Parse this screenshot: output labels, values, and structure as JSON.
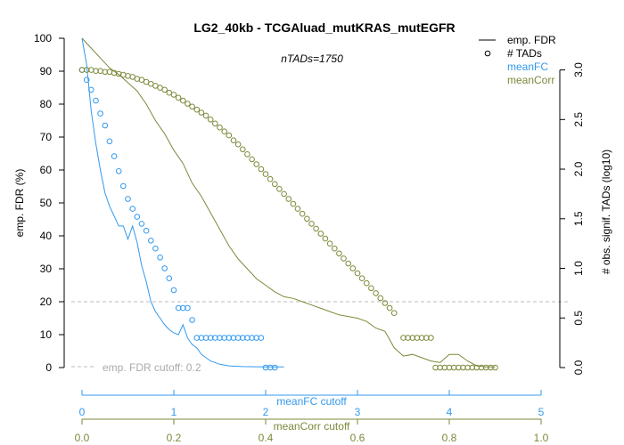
{
  "chart_data": {
    "type": "line",
    "title": "LG2_40kb - TCGAluad_mutKRAS_mutEGFR",
    "subtitle": "nTADs=1750",
    "left_axis": {
      "label": "emp. FDR (%)",
      "ticks": [
        0,
        10,
        20,
        30,
        40,
        50,
        60,
        70,
        80,
        90,
        100
      ],
      "range": [
        0,
        100
      ]
    },
    "right_axis": {
      "label": "# obs. signif. TADs (log10)",
      "ticks": [
        "0.0",
        "0.5",
        "1.0",
        "1.5",
        "2.0",
        "2.5",
        "3.0"
      ],
      "range": [
        0,
        3.05
      ]
    },
    "x_axis_meanFC": {
      "label": "meanFC cutoff",
      "ticks": [
        0,
        1,
        2,
        3,
        4,
        5
      ],
      "range": [
        0,
        5
      ]
    },
    "x_axis_meanCorr": {
      "label": "meanCorr cutoff",
      "ticks": [
        "0.0",
        "0.2",
        "0.4",
        "0.6",
        "0.8",
        "1.0"
      ],
      "range": [
        0,
        1
      ]
    },
    "fdr_cutoff": {
      "value": 20,
      "label": "emp. FDR cutoff: 0.2"
    },
    "legend": {
      "position": "top-right",
      "items": [
        {
          "label": "emp. FDR",
          "symbol": "line",
          "color": "#000000"
        },
        {
          "label": "# TADs",
          "symbol": "circle",
          "color": "#000000"
        },
        {
          "label": "meanFC",
          "symbol": "none",
          "color": "#3399ee"
        },
        {
          "label": "meanCorr",
          "symbol": "none",
          "color": "#7a8a3a"
        }
      ]
    },
    "series": [
      {
        "name": "meanFC",
        "color": "#3399ee",
        "x_axis": "meanFC",
        "fdr_line": [
          [
            0,
            100
          ],
          [
            0.05,
            92
          ],
          [
            0.1,
            78
          ],
          [
            0.15,
            68
          ],
          [
            0.2,
            60
          ],
          [
            0.25,
            53
          ],
          [
            0.3,
            49
          ],
          [
            0.35,
            46
          ],
          [
            0.4,
            43
          ],
          [
            0.45,
            43
          ],
          [
            0.5,
            39
          ],
          [
            0.55,
            43
          ],
          [
            0.6,
            38
          ],
          [
            0.65,
            31
          ],
          [
            0.7,
            26
          ],
          [
            0.75,
            20
          ],
          [
            0.8,
            17
          ],
          [
            0.85,
            15
          ],
          [
            0.9,
            13
          ],
          [
            0.95,
            11.5
          ],
          [
            1.0,
            10.5
          ],
          [
            1.05,
            10
          ],
          [
            1.1,
            13
          ],
          [
            1.15,
            9
          ],
          [
            1.2,
            7
          ],
          [
            1.25,
            6
          ],
          [
            1.3,
            4
          ],
          [
            1.35,
            3
          ],
          [
            1.4,
            2
          ],
          [
            1.5,
            1
          ],
          [
            1.6,
            0.5
          ],
          [
            1.75,
            0.3
          ],
          [
            2.0,
            0.2
          ],
          [
            2.2,
            0.2
          ]
        ],
        "tads_log10": [
          [
            0,
            3.0
          ],
          [
            0.05,
            2.9
          ],
          [
            0.1,
            2.8
          ],
          [
            0.15,
            2.69
          ],
          [
            0.2,
            2.56
          ],
          [
            0.25,
            2.44
          ],
          [
            0.3,
            2.28
          ],
          [
            0.35,
            2.13
          ],
          [
            0.4,
            1.98
          ],
          [
            0.45,
            1.83
          ],
          [
            0.5,
            1.7
          ],
          [
            0.55,
            1.6
          ],
          [
            0.6,
            1.52
          ],
          [
            0.65,
            1.45
          ],
          [
            0.7,
            1.38
          ],
          [
            0.75,
            1.28
          ],
          [
            0.8,
            1.2
          ],
          [
            0.85,
            1.11
          ],
          [
            0.9,
            1.0
          ],
          [
            0.95,
            0.9
          ],
          [
            1.0,
            0.78
          ],
          [
            1.05,
            0.6
          ],
          [
            1.1,
            0.6
          ],
          [
            1.15,
            0.6
          ],
          [
            1.2,
            0.48
          ],
          [
            1.25,
            0.3
          ],
          [
            1.3,
            0.3
          ],
          [
            1.35,
            0.3
          ],
          [
            1.4,
            0.3
          ],
          [
            1.45,
            0.3
          ],
          [
            1.5,
            0.3
          ],
          [
            1.55,
            0.3
          ],
          [
            1.6,
            0.3
          ],
          [
            1.65,
            0.3
          ],
          [
            1.7,
            0.3
          ],
          [
            1.75,
            0.3
          ],
          [
            1.8,
            0.3
          ],
          [
            1.85,
            0.3
          ],
          [
            1.9,
            0.3
          ],
          [
            1.95,
            0.3
          ],
          [
            2.0,
            0.0
          ],
          [
            2.05,
            0.0
          ],
          [
            2.1,
            0.0
          ]
        ]
      },
      {
        "name": "meanCorr",
        "color": "#7a8a3a",
        "x_axis": "meanCorr",
        "fdr_line": [
          [
            0,
            100
          ],
          [
            0.02,
            97
          ],
          [
            0.04,
            94
          ],
          [
            0.06,
            91
          ],
          [
            0.08,
            89
          ],
          [
            0.1,
            86.5
          ],
          [
            0.12,
            84
          ],
          [
            0.14,
            80
          ],
          [
            0.16,
            75
          ],
          [
            0.18,
            71
          ],
          [
            0.2,
            66
          ],
          [
            0.22,
            62
          ],
          [
            0.24,
            56
          ],
          [
            0.26,
            52
          ],
          [
            0.28,
            47
          ],
          [
            0.3,
            42
          ],
          [
            0.32,
            37
          ],
          [
            0.34,
            33
          ],
          [
            0.36,
            30
          ],
          [
            0.38,
            27
          ],
          [
            0.4,
            25
          ],
          [
            0.42,
            23
          ],
          [
            0.44,
            21.5
          ],
          [
            0.46,
            21
          ],
          [
            0.48,
            20
          ],
          [
            0.5,
            19
          ],
          [
            0.52,
            18
          ],
          [
            0.54,
            17
          ],
          [
            0.56,
            16
          ],
          [
            0.58,
            15.5
          ],
          [
            0.6,
            15
          ],
          [
            0.62,
            14
          ],
          [
            0.64,
            12
          ],
          [
            0.66,
            11
          ],
          [
            0.68,
            6
          ],
          [
            0.7,
            3.5
          ],
          [
            0.72,
            4
          ],
          [
            0.74,
            3
          ],
          [
            0.76,
            2
          ],
          [
            0.78,
            1.5
          ],
          [
            0.8,
            4
          ],
          [
            0.82,
            4
          ],
          [
            0.84,
            2
          ],
          [
            0.86,
            0.5
          ],
          [
            0.88,
            0.2
          ],
          [
            0.9,
            0.2
          ]
        ],
        "tads_log10": [
          [
            0,
            3.0
          ],
          [
            0.01,
            3.0
          ],
          [
            0.02,
            3.0
          ],
          [
            0.03,
            2.99
          ],
          [
            0.04,
            2.99
          ],
          [
            0.05,
            2.98
          ],
          [
            0.06,
            2.98
          ],
          [
            0.07,
            2.97
          ],
          [
            0.08,
            2.96
          ],
          [
            0.09,
            2.95
          ],
          [
            0.1,
            2.94
          ],
          [
            0.11,
            2.93
          ],
          [
            0.12,
            2.91
          ],
          [
            0.13,
            2.9
          ],
          [
            0.14,
            2.88
          ],
          [
            0.15,
            2.86
          ],
          [
            0.16,
            2.84
          ],
          [
            0.17,
            2.82
          ],
          [
            0.18,
            2.8
          ],
          [
            0.19,
            2.77
          ],
          [
            0.2,
            2.75
          ],
          [
            0.21,
            2.72
          ],
          [
            0.22,
            2.69
          ],
          [
            0.23,
            2.66
          ],
          [
            0.24,
            2.63
          ],
          [
            0.25,
            2.6
          ],
          [
            0.26,
            2.57
          ],
          [
            0.27,
            2.54
          ],
          [
            0.28,
            2.5
          ],
          [
            0.29,
            2.46
          ],
          [
            0.3,
            2.42
          ],
          [
            0.31,
            2.38
          ],
          [
            0.32,
            2.34
          ],
          [
            0.33,
            2.29
          ],
          [
            0.34,
            2.25
          ],
          [
            0.35,
            2.2
          ],
          [
            0.36,
            2.15
          ],
          [
            0.37,
            2.1
          ],
          [
            0.38,
            2.05
          ],
          [
            0.39,
            2.0
          ],
          [
            0.4,
            1.95
          ],
          [
            0.41,
            1.9
          ],
          [
            0.42,
            1.85
          ],
          [
            0.43,
            1.8
          ],
          [
            0.44,
            1.75
          ],
          [
            0.45,
            1.7
          ],
          [
            0.46,
            1.65
          ],
          [
            0.47,
            1.6
          ],
          [
            0.48,
            1.55
          ],
          [
            0.49,
            1.5
          ],
          [
            0.5,
            1.45
          ],
          [
            0.51,
            1.4
          ],
          [
            0.52,
            1.35
          ],
          [
            0.53,
            1.3
          ],
          [
            0.54,
            1.25
          ],
          [
            0.55,
            1.2
          ],
          [
            0.56,
            1.15
          ],
          [
            0.57,
            1.1
          ],
          [
            0.58,
            1.05
          ],
          [
            0.59,
            1.0
          ],
          [
            0.6,
            0.95
          ],
          [
            0.61,
            0.9
          ],
          [
            0.62,
            0.85
          ],
          [
            0.63,
            0.8
          ],
          [
            0.64,
            0.75
          ],
          [
            0.65,
            0.7
          ],
          [
            0.66,
            0.65
          ],
          [
            0.67,
            0.6
          ],
          [
            0.68,
            0.55
          ],
          [
            0.7,
            0.3
          ],
          [
            0.71,
            0.3
          ],
          [
            0.72,
            0.3
          ],
          [
            0.73,
            0.3
          ],
          [
            0.74,
            0.3
          ],
          [
            0.75,
            0.3
          ],
          [
            0.76,
            0.3
          ],
          [
            0.77,
            0.0
          ],
          [
            0.78,
            0.0
          ],
          [
            0.79,
            0.0
          ],
          [
            0.8,
            0.0
          ],
          [
            0.81,
            0.0
          ],
          [
            0.82,
            0.0
          ],
          [
            0.83,
            0.0
          ],
          [
            0.84,
            0.0
          ],
          [
            0.85,
            0.0
          ],
          [
            0.86,
            0.0
          ],
          [
            0.87,
            0.0
          ],
          [
            0.88,
            0.0
          ],
          [
            0.89,
            0.0
          ],
          [
            0.9,
            0.0
          ]
        ]
      }
    ]
  }
}
